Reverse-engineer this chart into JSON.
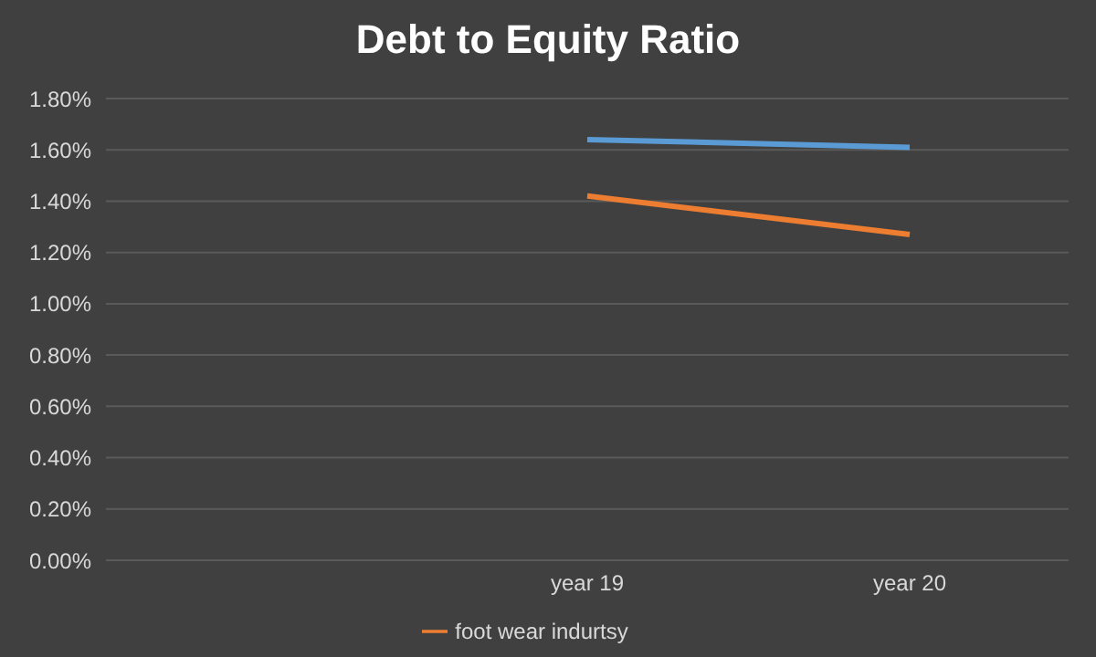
{
  "chart_data": {
    "type": "line",
    "title": "Debt to Equity Ratio",
    "categories": [
      null,
      "year 19",
      "year 20"
    ],
    "series": [
      {
        "color": "#5b9bd5",
        "values": [
          null,
          1.64,
          1.61
        ]
      },
      {
        "name": "foot wear indurtsy",
        "color": "#ed7d31",
        "values": [
          null,
          1.42,
          1.27
        ]
      }
    ],
    "ylim": [
      0,
      1.8
    ],
    "yticks": [
      {
        "value": 0,
        "label": "0.00%"
      },
      {
        "value": 0.2,
        "label": "0.20%"
      },
      {
        "value": 0.4,
        "label": "0.40%"
      },
      {
        "value": 0.6,
        "label": "0.60%"
      },
      {
        "value": 0.8,
        "label": "0.80%"
      },
      {
        "value": 1.0,
        "label": "1.00%"
      },
      {
        "value": 1.2,
        "label": "1.20%"
      },
      {
        "value": 1.4,
        "label": "1.40%"
      },
      {
        "value": 1.6,
        "label": "1.60%"
      },
      {
        "value": 1.8,
        "label": "1.80%"
      }
    ],
    "grid": "y",
    "legend": "bottom",
    "marker": "none",
    "line_style": "solid"
  }
}
